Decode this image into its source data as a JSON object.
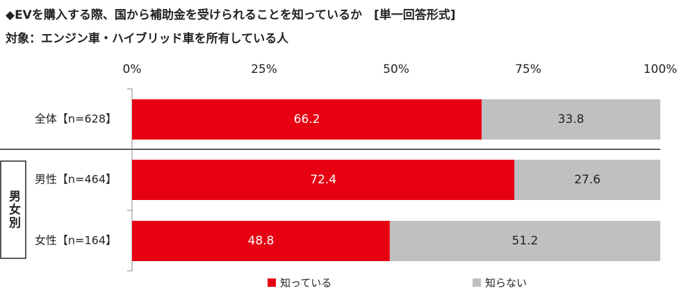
{
  "chart_data": {
    "type": "stacked-bar-horizontal",
    "title": "◆EVを購入する際、国から補助金を受けられることを知っているか　[単一回答形式]",
    "subtitle": "対象：エンジン車・ハイブリッド車を所有している人",
    "categories": [
      "全体【n=628】",
      "男性【n=464】",
      "女性【n=164】"
    ],
    "group_label": "男女別",
    "series": [
      {
        "name": "知っている",
        "color": "#e60012",
        "values": [
          66.2,
          72.4,
          48.8
        ]
      },
      {
        "name": "知らない",
        "color": "#c0bfc1",
        "values": [
          33.8,
          27.6,
          51.2
        ]
      }
    ],
    "xlim": [
      0,
      100
    ],
    "xticks": [
      {
        "value": 0,
        "label": "0%"
      },
      {
        "value": 25,
        "label": "25%"
      },
      {
        "value": 50,
        "label": "50%"
      },
      {
        "value": 75,
        "label": "75%"
      },
      {
        "value": 100,
        "label": "100%"
      }
    ]
  }
}
